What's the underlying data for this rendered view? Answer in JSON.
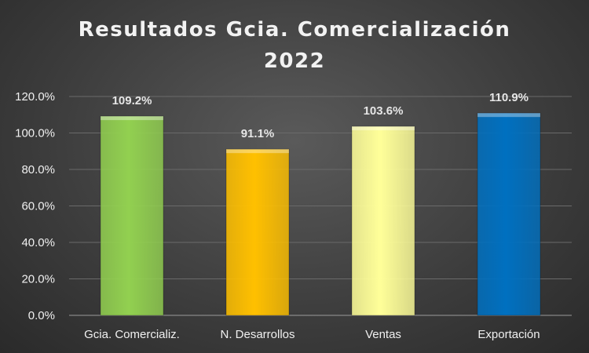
{
  "chart_data": {
    "type": "bar",
    "title": [
      "Resultados Gcia. Comercialización",
      "2022"
    ],
    "categories": [
      "Gcia. Comercializ.",
      "N. Desarrollos",
      "Ventas",
      "Exportación"
    ],
    "values": [
      109.2,
      91.1,
      103.6,
      110.9
    ],
    "data_labels": [
      "109.2%",
      "91.1%",
      "103.6%",
      "110.9%"
    ],
    "bar_colors": [
      "#92d050",
      "#ffc000",
      "#ffff99",
      "#0070c0"
    ],
    "ylim": [
      0,
      120
    ],
    "yticks": [
      0,
      20,
      40,
      60,
      80,
      100,
      120
    ],
    "ytick_labels": [
      "0.0%",
      "20.0%",
      "40.0%",
      "60.0%",
      "80.0%",
      "100.0%",
      "120.0%"
    ],
    "xlabel": "",
    "ylabel": "",
    "grid": true,
    "legend": "none"
  }
}
